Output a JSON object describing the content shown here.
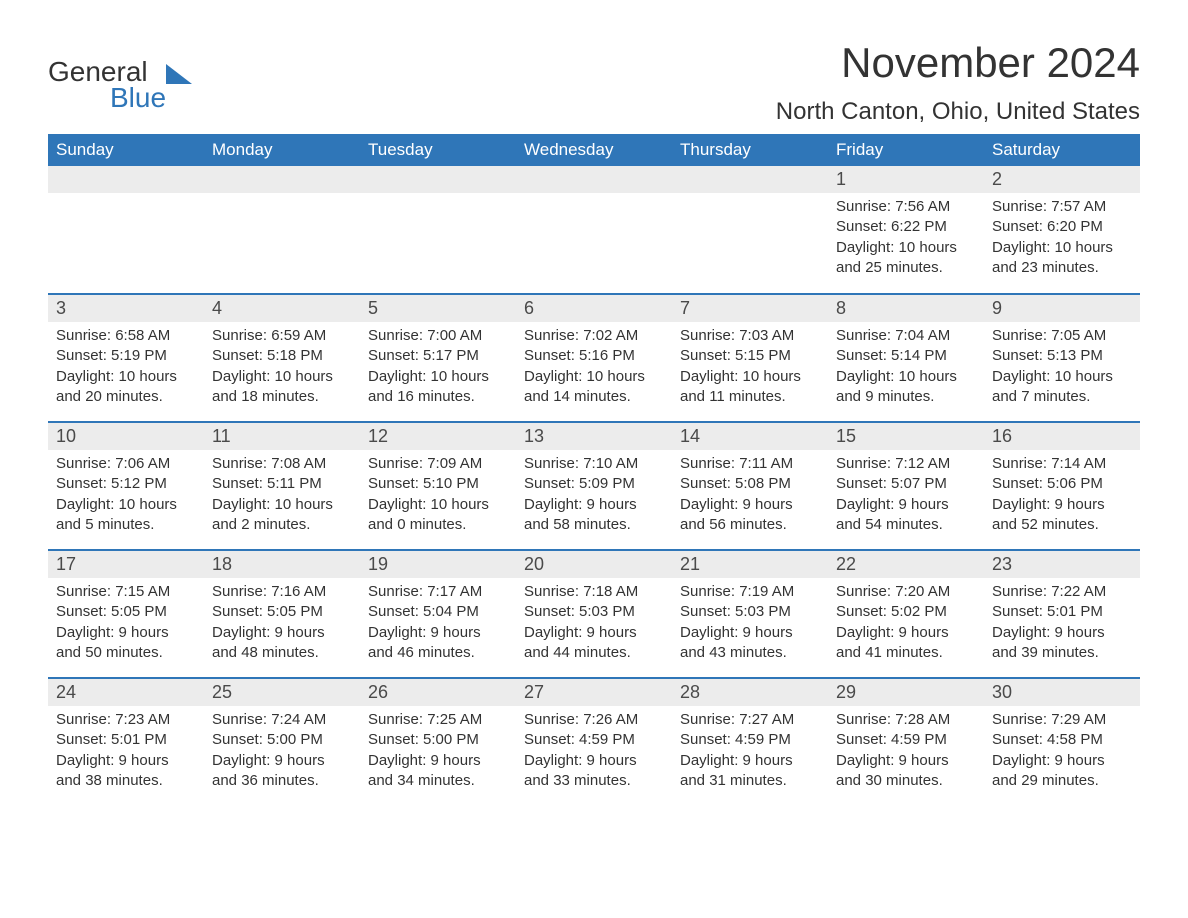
{
  "brand": {
    "line1": "General",
    "line2": "Blue",
    "text_color": "#333333",
    "accent_color": "#2f76b8"
  },
  "title": "November 2024",
  "location": "North Canton, Ohio, United States",
  "colors": {
    "header_bg": "#2f76b8",
    "header_fg": "#ffffff",
    "daynum_bg": "#ececec",
    "daynum_fg": "#4a4a4a",
    "row_sep": "#2f76b8",
    "body_text": "#333333",
    "page_bg": "#ffffff"
  },
  "typography": {
    "title_fontsize": 42,
    "location_fontsize": 24,
    "header_fontsize": 17,
    "daynum_fontsize": 18,
    "body_fontsize": 15,
    "font_family": "Arial"
  },
  "layout": {
    "columns": 7,
    "rows": 5,
    "first_weekday": "Sunday",
    "leading_blank_cells": 5
  },
  "weekdays": [
    "Sunday",
    "Monday",
    "Tuesday",
    "Wednesday",
    "Thursday",
    "Friday",
    "Saturday"
  ],
  "labels": {
    "sunrise": "Sunrise:",
    "sunset": "Sunset:",
    "daylight": "Daylight:"
  },
  "days": [
    {
      "n": 1,
      "sunrise": "7:56 AM",
      "sunset": "6:22 PM",
      "daylight": "10 hours and 25 minutes."
    },
    {
      "n": 2,
      "sunrise": "7:57 AM",
      "sunset": "6:20 PM",
      "daylight": "10 hours and 23 minutes."
    },
    {
      "n": 3,
      "sunrise": "6:58 AM",
      "sunset": "5:19 PM",
      "daylight": "10 hours and 20 minutes."
    },
    {
      "n": 4,
      "sunrise": "6:59 AM",
      "sunset": "5:18 PM",
      "daylight": "10 hours and 18 minutes."
    },
    {
      "n": 5,
      "sunrise": "7:00 AM",
      "sunset": "5:17 PM",
      "daylight": "10 hours and 16 minutes."
    },
    {
      "n": 6,
      "sunrise": "7:02 AM",
      "sunset": "5:16 PM",
      "daylight": "10 hours and 14 minutes."
    },
    {
      "n": 7,
      "sunrise": "7:03 AM",
      "sunset": "5:15 PM",
      "daylight": "10 hours and 11 minutes."
    },
    {
      "n": 8,
      "sunrise": "7:04 AM",
      "sunset": "5:14 PM",
      "daylight": "10 hours and 9 minutes."
    },
    {
      "n": 9,
      "sunrise": "7:05 AM",
      "sunset": "5:13 PM",
      "daylight": "10 hours and 7 minutes."
    },
    {
      "n": 10,
      "sunrise": "7:06 AM",
      "sunset": "5:12 PM",
      "daylight": "10 hours and 5 minutes."
    },
    {
      "n": 11,
      "sunrise": "7:08 AM",
      "sunset": "5:11 PM",
      "daylight": "10 hours and 2 minutes."
    },
    {
      "n": 12,
      "sunrise": "7:09 AM",
      "sunset": "5:10 PM",
      "daylight": "10 hours and 0 minutes."
    },
    {
      "n": 13,
      "sunrise": "7:10 AM",
      "sunset": "5:09 PM",
      "daylight": "9 hours and 58 minutes."
    },
    {
      "n": 14,
      "sunrise": "7:11 AM",
      "sunset": "5:08 PM",
      "daylight": "9 hours and 56 minutes."
    },
    {
      "n": 15,
      "sunrise": "7:12 AM",
      "sunset": "5:07 PM",
      "daylight": "9 hours and 54 minutes."
    },
    {
      "n": 16,
      "sunrise": "7:14 AM",
      "sunset": "5:06 PM",
      "daylight": "9 hours and 52 minutes."
    },
    {
      "n": 17,
      "sunrise": "7:15 AM",
      "sunset": "5:05 PM",
      "daylight": "9 hours and 50 minutes."
    },
    {
      "n": 18,
      "sunrise": "7:16 AM",
      "sunset": "5:05 PM",
      "daylight": "9 hours and 48 minutes."
    },
    {
      "n": 19,
      "sunrise": "7:17 AM",
      "sunset": "5:04 PM",
      "daylight": "9 hours and 46 minutes."
    },
    {
      "n": 20,
      "sunrise": "7:18 AM",
      "sunset": "5:03 PM",
      "daylight": "9 hours and 44 minutes."
    },
    {
      "n": 21,
      "sunrise": "7:19 AM",
      "sunset": "5:03 PM",
      "daylight": "9 hours and 43 minutes."
    },
    {
      "n": 22,
      "sunrise": "7:20 AM",
      "sunset": "5:02 PM",
      "daylight": "9 hours and 41 minutes."
    },
    {
      "n": 23,
      "sunrise": "7:22 AM",
      "sunset": "5:01 PM",
      "daylight": "9 hours and 39 minutes."
    },
    {
      "n": 24,
      "sunrise": "7:23 AM",
      "sunset": "5:01 PM",
      "daylight": "9 hours and 38 minutes."
    },
    {
      "n": 25,
      "sunrise": "7:24 AM",
      "sunset": "5:00 PM",
      "daylight": "9 hours and 36 minutes."
    },
    {
      "n": 26,
      "sunrise": "7:25 AM",
      "sunset": "5:00 PM",
      "daylight": "9 hours and 34 minutes."
    },
    {
      "n": 27,
      "sunrise": "7:26 AM",
      "sunset": "4:59 PM",
      "daylight": "9 hours and 33 minutes."
    },
    {
      "n": 28,
      "sunrise": "7:27 AM",
      "sunset": "4:59 PM",
      "daylight": "9 hours and 31 minutes."
    },
    {
      "n": 29,
      "sunrise": "7:28 AM",
      "sunset": "4:59 PM",
      "daylight": "9 hours and 30 minutes."
    },
    {
      "n": 30,
      "sunrise": "7:29 AM",
      "sunset": "4:58 PM",
      "daylight": "9 hours and 29 minutes."
    }
  ]
}
